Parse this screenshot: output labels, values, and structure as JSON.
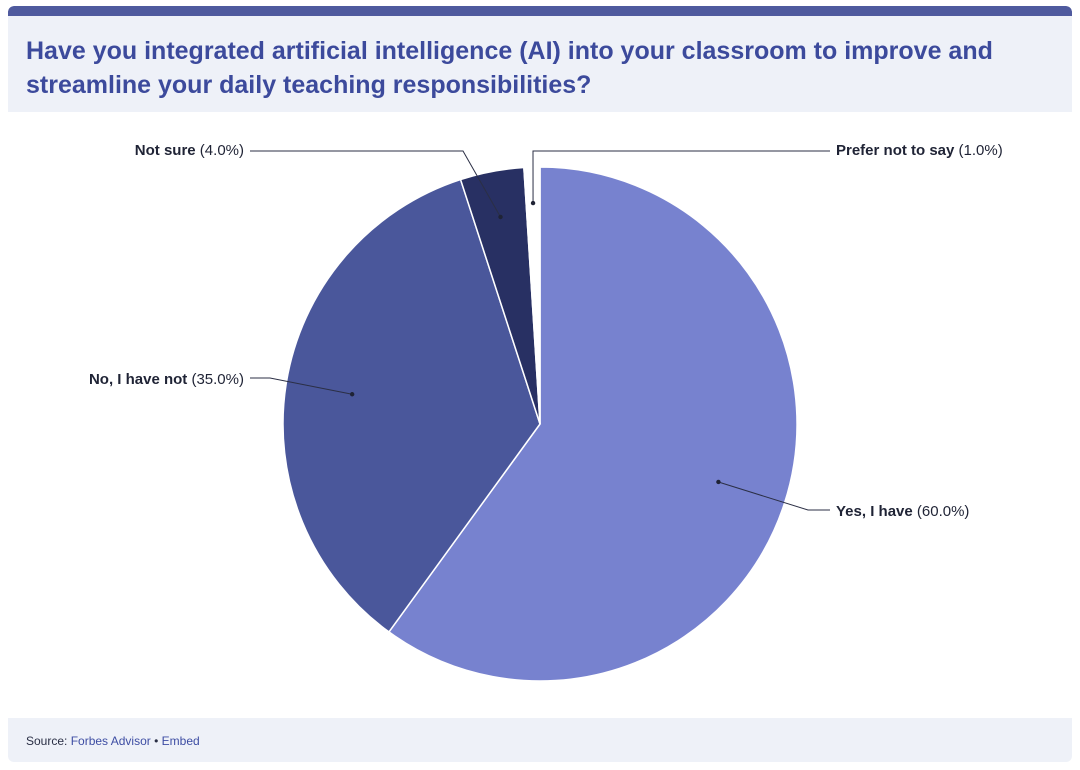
{
  "header": {
    "title": "Have you integrated artificial intelligence (AI) into your classroom to improve and streamline your daily teaching responsibilities?"
  },
  "footer": {
    "source_label": "Source:",
    "source_name": "Forbes Advisor",
    "separator": "•",
    "embed_label": "Embed"
  },
  "colors": {
    "accent": "#4f5a9e",
    "title": "#3c4a9c",
    "header_bg": "#eef1f8"
  },
  "chart_data": {
    "type": "pie",
    "title": "Have you integrated artificial intelligence (AI) into your classroom to improve and streamline your daily teaching responsibilities?",
    "categories": [
      "Yes, I have",
      "No, I have not",
      "Not sure",
      "Prefer not to say"
    ],
    "values": [
      60.0,
      35.0,
      4.0,
      1.0
    ],
    "value_labels": [
      "(60.0%)",
      "(35.0%)",
      "(4.0%)",
      "(1.0%)"
    ],
    "colors": [
      "#7782cf",
      "#4a579b",
      "#283063",
      "#ffffff"
    ],
    "start_angle": "12 o'clock, clockwise",
    "legend": "none (leader-line labels)"
  }
}
